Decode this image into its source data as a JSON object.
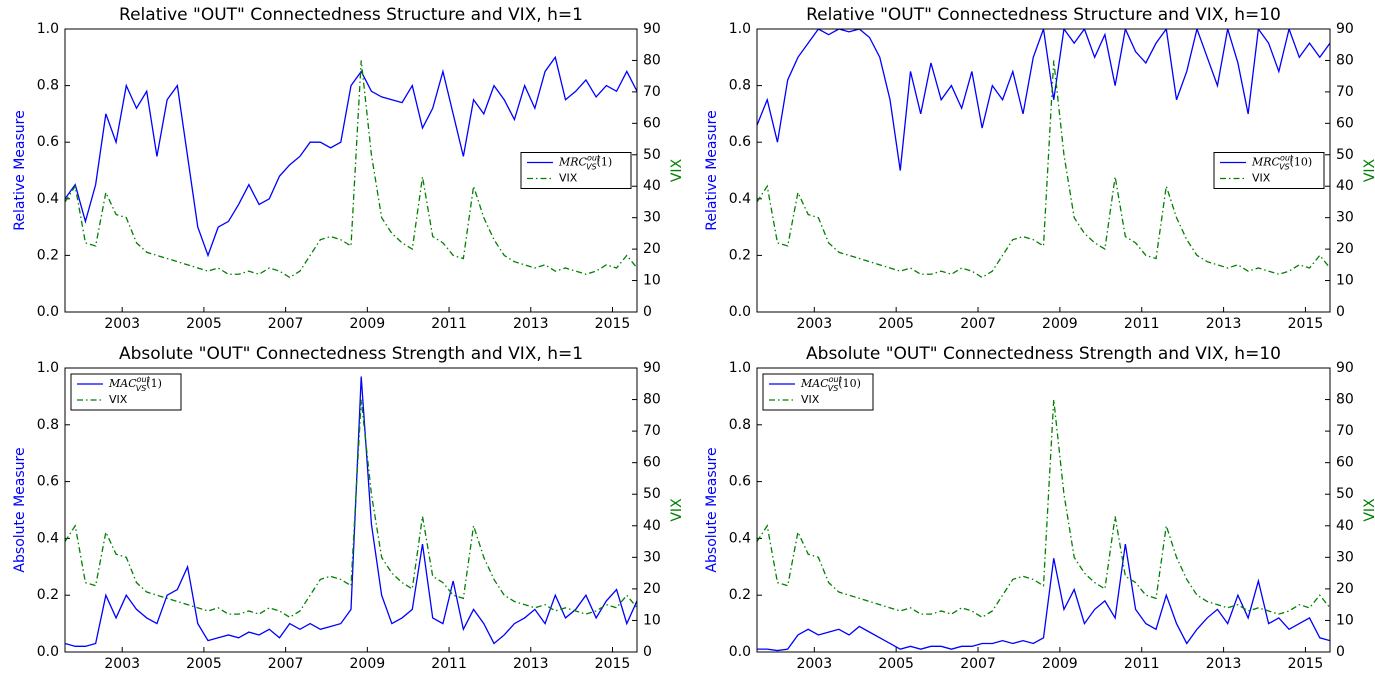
{
  "chart_data": [
    {
      "type": "line",
      "title": "Relative \"OUT\" Connectedness Structure and VIX, h=1",
      "ylabel": "Relative Measure",
      "y2label": "VIX",
      "legend": "center right",
      "x": [
        2001.6,
        2001.85,
        2002.1,
        2002.35,
        2002.6,
        2002.85,
        2003.1,
        2003.35,
        2003.6,
        2003.85,
        2004.1,
        2004.35,
        2004.6,
        2004.85,
        2005.1,
        2005.35,
        2005.6,
        2005.85,
        2006.1,
        2006.35,
        2006.6,
        2006.85,
        2007.1,
        2007.35,
        2007.6,
        2007.85,
        2008.1,
        2008.35,
        2008.6,
        2008.85,
        2009.1,
        2009.35,
        2009.6,
        2009.85,
        2010.1,
        2010.35,
        2010.6,
        2010.85,
        2011.1,
        2011.35,
        2011.6,
        2011.85,
        2012.1,
        2012.35,
        2012.6,
        2012.85,
        2013.1,
        2013.35,
        2013.6,
        2013.85,
        2014.1,
        2014.35,
        2014.6,
        2014.85,
        2015.1,
        2015.35,
        2015.6
      ],
      "xlim": [
        2001.6,
        2015.6
      ],
      "xticks": [
        2003,
        2005,
        2007,
        2009,
        2011,
        2013,
        2015
      ],
      "ylim": [
        0,
        1
      ],
      "yticks": [
        {
          "value": 0,
          "label": "0.0"
        },
        0.2,
        0.4,
        0.6,
        0.8,
        {
          "value": 1,
          "label": "1.0"
        }
      ],
      "y2lim": [
        0,
        90
      ],
      "y2ticks": [
        0,
        10,
        20,
        30,
        40,
        50,
        60,
        70,
        80,
        90
      ],
      "series": [
        {
          "name": "MRC_{V_S}^{out}(1)",
          "color": "#0000ff",
          "values": [
            0.4,
            0.45,
            0.32,
            0.45,
            0.7,
            0.6,
            0.8,
            0.72,
            0.78,
            0.55,
            0.75,
            0.8,
            0.55,
            0.3,
            0.2,
            0.3,
            0.32,
            0.38,
            0.45,
            0.38,
            0.4,
            0.48,
            0.52,
            0.55,
            0.6,
            0.6,
            0.58,
            0.6,
            0.8,
            0.85,
            0.78,
            0.76,
            0.75,
            0.74,
            0.8,
            0.65,
            0.72,
            0.85,
            0.7,
            0.55,
            0.75,
            0.7,
            0.8,
            0.75,
            0.68,
            0.8,
            0.72,
            0.85,
            0.9,
            0.75,
            0.78,
            0.82,
            0.76,
            0.8,
            0.78,
            0.85,
            0.78
          ]
        },
        {
          "name": "VIX",
          "color": "#008000",
          "dash": true,
          "axis": "y2",
          "values": [
            35,
            40,
            22,
            21,
            38,
            31,
            30,
            22,
            19,
            18,
            17,
            16,
            15,
            14,
            13,
            14,
            12,
            12,
            13,
            12,
            14,
            13,
            11,
            13,
            18,
            23,
            24,
            23,
            21,
            80,
            50,
            30,
            25,
            22,
            20,
            43,
            24,
            22,
            18,
            17,
            40,
            30,
            23,
            18,
            16,
            15,
            14,
            15,
            13,
            14,
            13,
            12,
            13,
            15,
            14,
            18,
            14
          ]
        }
      ]
    },
    {
      "type": "line",
      "title": "Relative \"OUT\" Connectedness Structure and VIX, h=10",
      "ylabel": "Relative Measure",
      "y2label": "VIX",
      "legend": "center right",
      "x": [
        2001.6,
        2001.85,
        2002.1,
        2002.35,
        2002.6,
        2002.85,
        2003.1,
        2003.35,
        2003.6,
        2003.85,
        2004.1,
        2004.35,
        2004.6,
        2004.85,
        2005.1,
        2005.35,
        2005.6,
        2005.85,
        2006.1,
        2006.35,
        2006.6,
        2006.85,
        2007.1,
        2007.35,
        2007.6,
        2007.85,
        2008.1,
        2008.35,
        2008.6,
        2008.85,
        2009.1,
        2009.35,
        2009.6,
        2009.85,
        2010.1,
        2010.35,
        2010.6,
        2010.85,
        2011.1,
        2011.35,
        2011.6,
        2011.85,
        2012.1,
        2012.35,
        2012.6,
        2012.85,
        2013.1,
        2013.35,
        2013.6,
        2013.85,
        2014.1,
        2014.35,
        2014.6,
        2014.85,
        2015.1,
        2015.35,
        2015.6
      ],
      "xlim": [
        2001.6,
        2015.6
      ],
      "xticks": [
        2003,
        2005,
        2007,
        2009,
        2011,
        2013,
        2015
      ],
      "ylim": [
        0,
        1
      ],
      "yticks": [
        {
          "value": 0,
          "label": "0.0"
        },
        0.2,
        0.4,
        0.6,
        0.8,
        {
          "value": 1,
          "label": "1.0"
        }
      ],
      "y2lim": [
        0,
        90
      ],
      "y2ticks": [
        0,
        10,
        20,
        30,
        40,
        50,
        60,
        70,
        80,
        90
      ],
      "series": [
        {
          "name": "MRC_{V_S}^{out}(10)",
          "color": "#0000ff",
          "values": [
            0.66,
            0.75,
            0.6,
            0.82,
            0.9,
            0.95,
            1.0,
            0.98,
            1.0,
            0.99,
            1.0,
            0.97,
            0.9,
            0.75,
            0.5,
            0.85,
            0.7,
            0.88,
            0.75,
            0.8,
            0.72,
            0.85,
            0.65,
            0.8,
            0.75,
            0.85,
            0.7,
            0.9,
            1.0,
            0.75,
            1.0,
            0.95,
            1.0,
            0.9,
            0.98,
            0.8,
            1.0,
            0.92,
            0.88,
            0.95,
            1.0,
            0.75,
            0.85,
            1.0,
            0.9,
            0.8,
            1.0,
            0.88,
            0.7,
            1.0,
            0.95,
            0.85,
            1.0,
            0.9,
            0.95,
            0.9,
            0.95
          ]
        },
        {
          "name": "VIX",
          "color": "#008000",
          "dash": true,
          "axis": "y2",
          "values": [
            35,
            40,
            22,
            21,
            38,
            31,
            30,
            22,
            19,
            18,
            17,
            16,
            15,
            14,
            13,
            14,
            12,
            12,
            13,
            12,
            14,
            13,
            11,
            13,
            18,
            23,
            24,
            23,
            21,
            80,
            50,
            30,
            25,
            22,
            20,
            43,
            24,
            22,
            18,
            17,
            40,
            30,
            23,
            18,
            16,
            15,
            14,
            15,
            13,
            14,
            13,
            12,
            13,
            15,
            14,
            18,
            14
          ]
        }
      ]
    },
    {
      "type": "line",
      "title": "Absolute \"OUT\" Connectedness Strength and VIX, h=1",
      "ylabel": "Absolute Measure",
      "y2label": "VIX",
      "legend": "upper left",
      "x": [
        2001.6,
        2001.85,
        2002.1,
        2002.35,
        2002.6,
        2002.85,
        2003.1,
        2003.35,
        2003.6,
        2003.85,
        2004.1,
        2004.35,
        2004.6,
        2004.85,
        2005.1,
        2005.35,
        2005.6,
        2005.85,
        2006.1,
        2006.35,
        2006.6,
        2006.85,
        2007.1,
        2007.35,
        2007.6,
        2007.85,
        2008.1,
        2008.35,
        2008.6,
        2008.85,
        2009.1,
        2009.35,
        2009.6,
        2009.85,
        2010.1,
        2010.35,
        2010.6,
        2010.85,
        2011.1,
        2011.35,
        2011.6,
        2011.85,
        2012.1,
        2012.35,
        2012.6,
        2012.85,
        2013.1,
        2013.35,
        2013.6,
        2013.85,
        2014.1,
        2014.35,
        2014.6,
        2014.85,
        2015.1,
        2015.35,
        2015.6
      ],
      "xlim": [
        2001.6,
        2015.6
      ],
      "xticks": [
        2003,
        2005,
        2007,
        2009,
        2011,
        2013,
        2015
      ],
      "ylim": [
        0,
        1
      ],
      "yticks": [
        {
          "value": 0,
          "label": "0.0"
        },
        0.2,
        0.4,
        0.6,
        0.8,
        {
          "value": 1,
          "label": "1.0"
        }
      ],
      "y2lim": [
        0,
        90
      ],
      "y2ticks": [
        0,
        10,
        20,
        30,
        40,
        50,
        60,
        70,
        80,
        90
      ],
      "series": [
        {
          "name": "MAC_{V_S}^{out}(1)",
          "color": "#0000ff",
          "values": [
            0.03,
            0.02,
            0.02,
            0.03,
            0.2,
            0.12,
            0.2,
            0.15,
            0.12,
            0.1,
            0.2,
            0.22,
            0.3,
            0.1,
            0.04,
            0.05,
            0.06,
            0.05,
            0.07,
            0.06,
            0.08,
            0.05,
            0.1,
            0.08,
            0.1,
            0.08,
            0.09,
            0.1,
            0.15,
            0.97,
            0.45,
            0.2,
            0.1,
            0.12,
            0.15,
            0.38,
            0.12,
            0.1,
            0.25,
            0.08,
            0.15,
            0.1,
            0.03,
            0.06,
            0.1,
            0.12,
            0.15,
            0.1,
            0.2,
            0.12,
            0.15,
            0.2,
            0.12,
            0.18,
            0.22,
            0.1,
            0.18
          ]
        },
        {
          "name": "VIX",
          "color": "#008000",
          "dash": true,
          "axis": "y2",
          "values": [
            35,
            40,
            22,
            21,
            38,
            31,
            30,
            22,
            19,
            18,
            17,
            16,
            15,
            14,
            13,
            14,
            12,
            12,
            13,
            12,
            14,
            13,
            11,
            13,
            18,
            23,
            24,
            23,
            21,
            80,
            50,
            30,
            25,
            22,
            20,
            43,
            24,
            22,
            18,
            17,
            40,
            30,
            23,
            18,
            16,
            15,
            14,
            15,
            13,
            14,
            13,
            12,
            13,
            15,
            14,
            18,
            14
          ]
        }
      ]
    },
    {
      "type": "line",
      "title": "Absolute \"OUT\" Connectedness Strength and VIX, h=10",
      "ylabel": "Absolute Measure",
      "y2label": "VIX",
      "legend": "upper left",
      "x": [
        2001.6,
        2001.85,
        2002.1,
        2002.35,
        2002.6,
        2002.85,
        2003.1,
        2003.35,
        2003.6,
        2003.85,
        2004.1,
        2004.35,
        2004.6,
        2004.85,
        2005.1,
        2005.35,
        2005.6,
        2005.85,
        2006.1,
        2006.35,
        2006.6,
        2006.85,
        2007.1,
        2007.35,
        2007.6,
        2007.85,
        2008.1,
        2008.35,
        2008.6,
        2008.85,
        2009.1,
        2009.35,
        2009.6,
        2009.85,
        2010.1,
        2010.35,
        2010.6,
        2010.85,
        2011.1,
        2011.35,
        2011.6,
        2011.85,
        2012.1,
        2012.35,
        2012.6,
        2012.85,
        2013.1,
        2013.35,
        2013.6,
        2013.85,
        2014.1,
        2014.35,
        2014.6,
        2014.85,
        2015.1,
        2015.35,
        2015.6
      ],
      "xlim": [
        2001.6,
        2015.6
      ],
      "xticks": [
        2003,
        2005,
        2007,
        2009,
        2011,
        2013,
        2015
      ],
      "ylim": [
        0,
        1
      ],
      "yticks": [
        {
          "value": 0,
          "label": "0.0"
        },
        0.2,
        0.4,
        0.6,
        0.8,
        {
          "value": 1,
          "label": "1.0"
        }
      ],
      "y2lim": [
        0,
        90
      ],
      "y2ticks": [
        0,
        10,
        20,
        30,
        40,
        50,
        60,
        70,
        80,
        90
      ],
      "series": [
        {
          "name": "MAC_{V_S}^{out}(10)",
          "color": "#0000ff",
          "values": [
            0.01,
            0.01,
            0.005,
            0.01,
            0.06,
            0.08,
            0.06,
            0.07,
            0.08,
            0.06,
            0.09,
            0.07,
            0.05,
            0.03,
            0.01,
            0.02,
            0.01,
            0.02,
            0.02,
            0.01,
            0.02,
            0.02,
            0.03,
            0.03,
            0.04,
            0.03,
            0.04,
            0.03,
            0.05,
            0.33,
            0.15,
            0.22,
            0.1,
            0.15,
            0.18,
            0.12,
            0.38,
            0.15,
            0.1,
            0.08,
            0.2,
            0.1,
            0.03,
            0.08,
            0.12,
            0.15,
            0.1,
            0.2,
            0.12,
            0.25,
            0.1,
            0.12,
            0.08,
            0.1,
            0.12,
            0.05,
            0.04
          ]
        },
        {
          "name": "VIX",
          "color": "#008000",
          "dash": true,
          "axis": "y2",
          "values": [
            35,
            40,
            22,
            21,
            38,
            31,
            30,
            22,
            19,
            18,
            17,
            16,
            15,
            14,
            13,
            14,
            12,
            12,
            13,
            12,
            14,
            13,
            11,
            13,
            18,
            23,
            24,
            23,
            21,
            80,
            50,
            30,
            25,
            22,
            20,
            43,
            24,
            22,
            18,
            17,
            40,
            30,
            23,
            18,
            16,
            15,
            14,
            15,
            13,
            14,
            13,
            12,
            13,
            15,
            14,
            18,
            14
          ]
        }
      ]
    }
  ]
}
